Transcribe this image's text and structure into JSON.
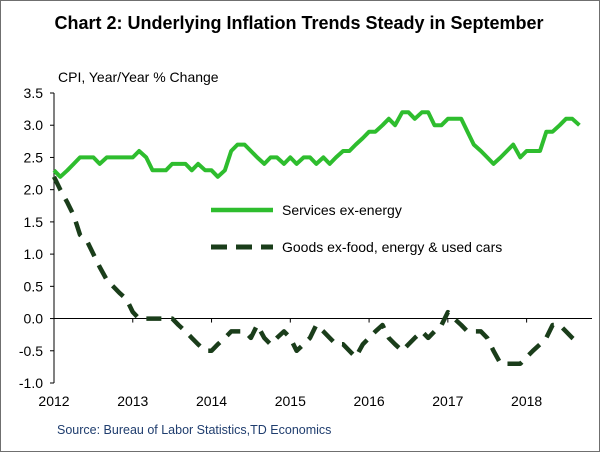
{
  "chart_data": {
    "type": "line",
    "title": "Chart 2: Underlying Inflation Trends Steady in September",
    "ylabel": "CPI, Year/Year % Change",
    "xlabel": "",
    "source": "Source: Bureau of Labor Statistics,TD Economics",
    "ylim": [
      -1.0,
      3.5
    ],
    "yticks": [
      "3.5",
      "3.0",
      "2.5",
      "2.0",
      "1.5",
      "1.0",
      "0.5",
      "0.0",
      "-0.5",
      "-1.0"
    ],
    "xlim": [
      2012.0,
      2018.83
    ],
    "xticks": [
      "2012",
      "2013",
      "2014",
      "2015",
      "2016",
      "2017",
      "2018"
    ],
    "legend_position": "center-right",
    "grid": false,
    "series": [
      {
        "name": "Services ex-energy",
        "color": "#2ebd2e",
        "style": "solid",
        "x": [
          2012.0,
          2012.08,
          2012.17,
          2012.25,
          2012.33,
          2012.42,
          2012.5,
          2012.58,
          2012.67,
          2012.75,
          2012.83,
          2012.92,
          2013.0,
          2013.08,
          2013.17,
          2013.25,
          2013.33,
          2013.42,
          2013.5,
          2013.58,
          2013.67,
          2013.75,
          2013.83,
          2013.92,
          2014.0,
          2014.08,
          2014.17,
          2014.25,
          2014.33,
          2014.42,
          2014.5,
          2014.58,
          2014.67,
          2014.75,
          2014.83,
          2014.92,
          2015.0,
          2015.08,
          2015.17,
          2015.25,
          2015.33,
          2015.42,
          2015.5,
          2015.58,
          2015.67,
          2015.75,
          2015.83,
          2015.92,
          2016.0,
          2016.08,
          2016.17,
          2016.25,
          2016.33,
          2016.42,
          2016.5,
          2016.58,
          2016.67,
          2016.75,
          2016.83,
          2016.92,
          2017.0,
          2017.08,
          2017.17,
          2017.25,
          2017.33,
          2017.42,
          2017.5,
          2017.58,
          2017.67,
          2017.75,
          2017.83,
          2017.92,
          2018.0,
          2018.08,
          2018.17,
          2018.25,
          2018.33,
          2018.42,
          2018.5,
          2018.58,
          2018.67
        ],
        "values": [
          2.3,
          2.2,
          2.3,
          2.4,
          2.5,
          2.5,
          2.5,
          2.4,
          2.5,
          2.5,
          2.5,
          2.5,
          2.5,
          2.6,
          2.5,
          2.3,
          2.3,
          2.3,
          2.4,
          2.4,
          2.4,
          2.3,
          2.4,
          2.3,
          2.3,
          2.2,
          2.3,
          2.6,
          2.7,
          2.7,
          2.6,
          2.5,
          2.4,
          2.5,
          2.5,
          2.4,
          2.5,
          2.4,
          2.5,
          2.5,
          2.4,
          2.5,
          2.4,
          2.5,
          2.6,
          2.6,
          2.7,
          2.8,
          2.9,
          2.9,
          3.0,
          3.1,
          3.0,
          3.2,
          3.2,
          3.1,
          3.2,
          3.2,
          3.0,
          3.0,
          3.1,
          3.1,
          3.1,
          2.9,
          2.7,
          2.6,
          2.5,
          2.4,
          2.5,
          2.6,
          2.7,
          2.5,
          2.6,
          2.6,
          2.6,
          2.9,
          2.9,
          3.0,
          3.1,
          3.1,
          3.0
        ]
      },
      {
        "name": "Goods ex-food, energy & used cars",
        "color": "#1a3d1a",
        "style": "dashed",
        "x": [
          2012.0,
          2012.08,
          2012.17,
          2012.25,
          2012.33,
          2012.42,
          2012.5,
          2012.58,
          2012.67,
          2012.75,
          2012.83,
          2012.92,
          2013.0,
          2013.08,
          2013.17,
          2013.25,
          2013.33,
          2013.42,
          2013.5,
          2013.58,
          2013.67,
          2013.75,
          2013.83,
          2013.92,
          2014.0,
          2014.08,
          2014.17,
          2014.25,
          2014.33,
          2014.42,
          2014.5,
          2014.58,
          2014.67,
          2014.75,
          2014.83,
          2014.92,
          2015.0,
          2015.08,
          2015.17,
          2015.25,
          2015.33,
          2015.42,
          2015.5,
          2015.58,
          2015.67,
          2015.75,
          2015.83,
          2015.92,
          2016.0,
          2016.08,
          2016.17,
          2016.25,
          2016.33,
          2016.42,
          2016.5,
          2016.58,
          2016.67,
          2016.75,
          2016.83,
          2016.92,
          2017.0,
          2017.08,
          2017.17,
          2017.25,
          2017.33,
          2017.42,
          2017.5,
          2017.58,
          2017.67,
          2017.75,
          2017.83,
          2017.92,
          2018.0,
          2018.08,
          2018.17,
          2018.25,
          2018.33,
          2018.42,
          2018.5,
          2018.58,
          2018.67
        ],
        "values": [
          2.2,
          2.0,
          1.8,
          1.6,
          1.3,
          1.2,
          1.0,
          0.8,
          0.6,
          0.5,
          0.4,
          0.3,
          0.1,
          0.0,
          0.0,
          0.0,
          0.0,
          0.0,
          0.0,
          -0.1,
          -0.2,
          -0.3,
          -0.4,
          -0.5,
          -0.5,
          -0.4,
          -0.3,
          -0.2,
          -0.2,
          -0.2,
          -0.3,
          -0.1,
          -0.3,
          -0.4,
          -0.3,
          -0.2,
          -0.3,
          -0.5,
          -0.4,
          -0.3,
          -0.1,
          -0.2,
          -0.3,
          -0.4,
          -0.4,
          -0.5,
          -0.6,
          -0.4,
          -0.3,
          -0.2,
          -0.1,
          -0.3,
          -0.4,
          -0.5,
          -0.4,
          -0.3,
          -0.2,
          -0.3,
          -0.2,
          -0.1,
          0.1,
          0.0,
          -0.1,
          -0.2,
          -0.2,
          -0.2,
          -0.3,
          -0.5,
          -0.7,
          -0.7,
          -0.7,
          -0.7,
          -0.6,
          -0.5,
          -0.4,
          -0.3,
          -0.1,
          -0.1,
          -0.2,
          -0.3,
          -0.4
        ]
      }
    ]
  }
}
